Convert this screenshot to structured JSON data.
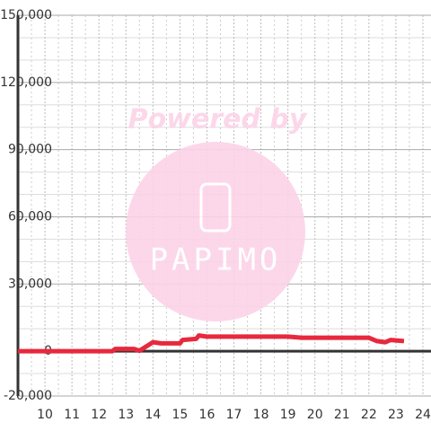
{
  "chart_data": {
    "type": "line",
    "watermark": {
      "title": "Powered by",
      "logo": "PAPIMO"
    },
    "x": [
      9,
      12.5,
      12.6,
      13.3,
      13.5,
      14,
      14.3,
      15,
      15.1,
      15.6,
      15.7,
      16,
      19,
      19.5,
      22,
      22.3,
      22.6,
      22.8,
      23.3
    ],
    "series": [
      {
        "color": "#e8283c",
        "values": [
          0,
          0,
          1000,
          1000,
          200,
          4000,
          3500,
          3500,
          5000,
          5500,
          7000,
          6500,
          6500,
          6000,
          6000,
          4500,
          4000,
          5000,
          4500
        ]
      }
    ],
    "xlim": [
      9,
      24.3
    ],
    "xticks": [
      10,
      11,
      12,
      13,
      14,
      15,
      16,
      17,
      18,
      19,
      20,
      21,
      22,
      23,
      24
    ],
    "xminorticks": [
      9.5,
      10.5,
      11.5,
      12.5,
      13.5,
      14.5,
      15.5,
      16.5,
      17.5,
      18.5,
      19.5,
      20.5,
      21.5,
      22.5,
      23.5
    ],
    "ylim": [
      -20000,
      150000
    ],
    "yticks": [
      {
        "value": -20000,
        "label": "-20,000"
      },
      0,
      {
        "value": 30000,
        "label": "30,000"
      },
      {
        "value": 60000,
        "label": "60,000"
      },
      {
        "value": 90000,
        "label": "90,000"
      },
      {
        "value": 120000,
        "label": "120,000"
      },
      {
        "value": 150000,
        "label": "150,000"
      }
    ],
    "yminorticks": [
      -10000,
      10000,
      20000,
      40000,
      50000,
      70000,
      80000,
      100000,
      110000,
      130000,
      140000
    ],
    "grid": true
  }
}
